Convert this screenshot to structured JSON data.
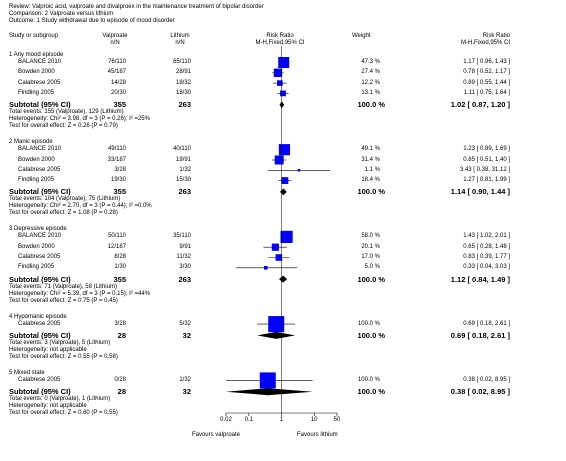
{
  "header": {
    "review": "Review:  Valproic acid, valproate and divalproex in the maintenance treatment of bipolar disorder",
    "comparison": "Comparison:  2 Valproate versus lithium",
    "outcome": "Outcome:  1 Study withdrawal due to episode of mood disorder"
  },
  "columns": {
    "study": "Study or subgroup",
    "exp_name": "Valproate",
    "exp_unit": "n/N",
    "ctrl_name": "Lithium",
    "ctrl_unit": "n/N",
    "rr_name": "Risk Ratio",
    "rr_method": "M-H,Fixed,95% CI",
    "weight": "Weight",
    "rr2_name": "Risk Ratio",
    "rr2_method": "M-H,Fixed,95% CI"
  },
  "axis": {
    "ticks": [
      "0.02",
      "0.1",
      "1",
      "10",
      "50"
    ],
    "favours_left": "Favours valproate",
    "favours_right": "Favours lithium"
  },
  "chart_data": {
    "type": "forest",
    "scale": "log",
    "xlim": [
      0.02,
      50
    ],
    "null_line": 1,
    "subgroups": [
      {
        "title": "1 Any mood episode",
        "studies": [
          {
            "name": "BALANCE 2010",
            "exp": "76/110",
            "ctrl": "65/110",
            "weight": "47.3 %",
            "ci_text": "1.17 [ 0.96, 1.43 ]",
            "rr": 1.17,
            "lo": 0.96,
            "hi": 1.43,
            "w": 47.3
          },
          {
            "name": "Bowden 2000",
            "exp": "45/187",
            "ctrl": "28/91",
            "weight": "27.4 %",
            "ci_text": "0.78 [ 0.52, 1.17 ]",
            "rr": 0.78,
            "lo": 0.52,
            "hi": 1.17,
            "w": 27.4
          },
          {
            "name": "Calabrese 2005",
            "exp": "14/28",
            "ctrl": "18/32",
            "weight": "12.2 %",
            "ci_text": "0.89 [ 0.55, 1.44 ]",
            "rr": 0.89,
            "lo": 0.55,
            "hi": 1.44,
            "w": 12.2
          },
          {
            "name": "Findling 2005",
            "exp": "20/30",
            "ctrl": "18/30",
            "weight": "13.1 %",
            "ci_text": "1.11 [ 0.75, 1.64 ]",
            "rr": 1.11,
            "lo": 0.75,
            "hi": 1.64,
            "w": 13.1
          }
        ],
        "subtotal": {
          "label": "Subtotal (95% CI)",
          "exp": "355",
          "ctrl": "263",
          "weight": "100.0 %",
          "ci_text": "1.02 [ 0.87, 1.20 ]",
          "rr": 1.02,
          "lo": 0.87,
          "hi": 1.2
        },
        "notes": [
          "Total events: 155 (Valproate), 129 (Lithium)",
          "Heterogeneity: Chi² = 3.98, df = 3 (P = 0.26); I² =25%",
          "Test for overall effect: Z = 0.26 (P = 0.79)"
        ]
      },
      {
        "title": "2 Manic episode",
        "studies": [
          {
            "name": "BALANCE 2010",
            "exp": "49/110",
            "ctrl": "40/110",
            "weight": "49.1 %",
            "ci_text": "1.23 [ 0.89, 1.69 ]",
            "rr": 1.23,
            "lo": 0.89,
            "hi": 1.69,
            "w": 49.1
          },
          {
            "name": "Bowden 2000",
            "exp": "33/187",
            "ctrl": "19/91",
            "weight": "31.4 %",
            "ci_text": "0.85 [ 0.51, 1.40 ]",
            "rr": 0.85,
            "lo": 0.51,
            "hi": 1.4,
            "w": 31.4
          },
          {
            "name": "Calabrese 2005",
            "exp": "3/28",
            "ctrl": "1/32",
            "weight": "1.1 %",
            "ci_text": "3.43 [ 0.38, 31.12 ]",
            "rr": 3.43,
            "lo": 0.38,
            "hi": 31.12,
            "w": 1.1
          },
          {
            "name": "Findling 2005",
            "exp": "19/30",
            "ctrl": "15/30",
            "weight": "18.4 %",
            "ci_text": "1.27 [ 0.81, 1.99 ]",
            "rr": 1.27,
            "lo": 0.81,
            "hi": 1.99,
            "w": 18.4
          }
        ],
        "subtotal": {
          "label": "Subtotal (95% CI)",
          "exp": "355",
          "ctrl": "263",
          "weight": "100.0 %",
          "ci_text": "1.14 [ 0.90, 1.44 ]",
          "rr": 1.14,
          "lo": 0.9,
          "hi": 1.44
        },
        "notes": [
          "Total events: 104 (Valproate), 75 (Lithium)",
          "Heterogeneity: Chi² = 2.70, df = 3 (P = 0.44); I² =0.0%",
          "Test for overall effect: Z = 1.08 (P = 0.28)"
        ]
      },
      {
        "title": "3 Depressive episode",
        "studies": [
          {
            "name": "BALANCE 2010",
            "exp": "50/110",
            "ctrl": "35/110",
            "weight": "58.0 %",
            "ci_text": "1.43 [ 1.02, 2.01 ]",
            "rr": 1.43,
            "lo": 1.02,
            "hi": 2.01,
            "w": 58.0
          },
          {
            "name": "Bowden 2000",
            "exp": "12/187",
            "ctrl": "9/91",
            "weight": "20.1 %",
            "ci_text": "0.65 [ 0.28, 1.48 ]",
            "rr": 0.65,
            "lo": 0.28,
            "hi": 1.48,
            "w": 20.1
          },
          {
            "name": "Calabrese 2005",
            "exp": "8/28",
            "ctrl": "11/32",
            "weight": "17.0 %",
            "ci_text": "0.83 [ 0.39, 1.77 ]",
            "rr": 0.83,
            "lo": 0.39,
            "hi": 1.77,
            "w": 17.0
          },
          {
            "name": "Findling 2005",
            "exp": "1/30",
            "ctrl": "3/30",
            "weight": "5.0 %",
            "ci_text": "0.33 [ 0.04, 3.03 ]",
            "rr": 0.33,
            "lo": 0.04,
            "hi": 3.03,
            "w": 5.0
          }
        ],
        "subtotal": {
          "label": "Subtotal (95% CI)",
          "exp": "355",
          "ctrl": "263",
          "weight": "100.0 %",
          "ci_text": "1.12 [ 0.84, 1.49 ]",
          "rr": 1.12,
          "lo": 0.84,
          "hi": 1.49
        },
        "notes": [
          "Total events: 71 (Valproate), 58 (Lithium)",
          "Heterogeneity: Chi² = 5.39, df = 3 (P = 0.15); I² =44%",
          "Test for overall effect: Z = 0.75 (P = 0.45)"
        ]
      },
      {
        "title": "4 Hypomanic episode",
        "studies": [
          {
            "name": "Calabrese 2005",
            "exp": "3/28",
            "ctrl": "5/32",
            "weight": "100.0 %",
            "ci_text": "0.69 [ 0.18, 2.61 ]",
            "rr": 0.69,
            "lo": 0.18,
            "hi": 2.61,
            "w": 100.0
          }
        ],
        "subtotal": {
          "label": "Subtotal (95% CI)",
          "exp": "28",
          "ctrl": "32",
          "weight": "100.0 %",
          "ci_text": "0.69 [ 0.18, 2.61 ]",
          "rr": 0.69,
          "lo": 0.18,
          "hi": 2.61
        },
        "notes": [
          "Total events: 3 (Valproate), 5 (Lithium)",
          "Heterogeneity: not applicable",
          "Test for overall effect: Z = 0.55 (P = 0.58)"
        ]
      },
      {
        "title": "5 Mixed state",
        "studies": [
          {
            "name": "Calabrese 2005",
            "exp": "0/28",
            "ctrl": "1/32",
            "weight": "100.0 %",
            "ci_text": "0.38 [ 0.02, 8.95 ]",
            "rr": 0.38,
            "lo": 0.02,
            "hi": 8.95,
            "w": 100.0
          }
        ],
        "subtotal": {
          "label": "Subtotal (95% CI)",
          "exp": "28",
          "ctrl": "32",
          "weight": "100.0 %",
          "ci_text": "0.38 [ 0.02, 8.95 ]",
          "rr": 0.38,
          "lo": 0.02,
          "hi": 8.95
        },
        "notes": [
          "Total events: 0 (Valproate), 1 (Lithium)",
          "Heterogeneity: not applicable",
          "Test for overall effect: Z = 0.60 (P = 0.55)"
        ]
      }
    ]
  },
  "colors": {
    "study_marker": "#0000ff",
    "summary_marker": "#000000",
    "ci_line": "#000000"
  }
}
